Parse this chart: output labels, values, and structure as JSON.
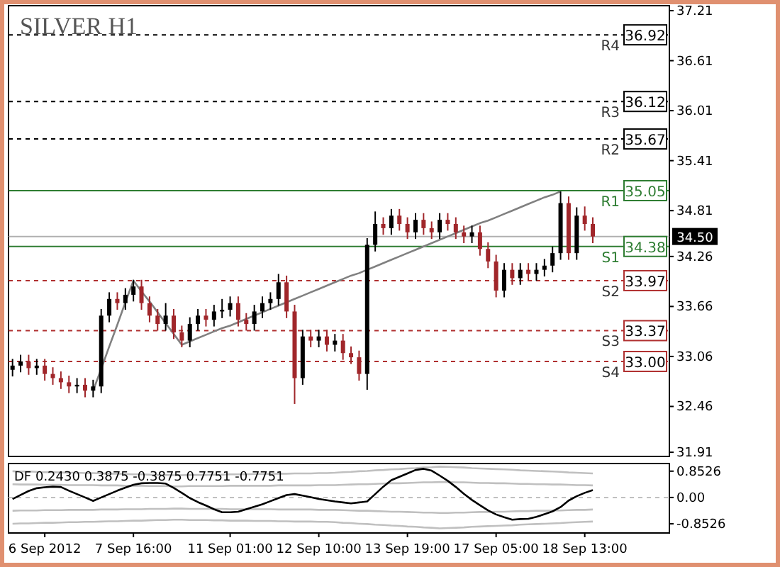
{
  "chart_data": [
    {
      "type": "candlestick",
      "title": "SILVER H1",
      "categories": [
        null,
        null,
        null,
        null,
        null,
        null,
        null,
        null,
        null,
        null,
        null,
        null,
        null,
        null,
        null,
        null,
        null,
        null,
        null,
        null,
        null,
        null,
        null,
        null,
        null,
        null,
        null,
        null,
        null,
        null,
        null,
        null,
        null,
        null,
        null,
        null,
        null,
        null,
        null,
        null,
        null,
        null,
        null,
        null,
        null,
        null,
        null,
        null,
        null,
        null,
        null,
        null,
        null,
        null,
        null,
        null,
        null,
        null,
        null,
        null,
        null,
        null,
        null,
        null,
        null,
        null,
        null,
        null,
        null,
        null,
        null,
        null,
        null,
        null,
        null,
        null,
        null,
        null,
        null,
        null,
        null,
        null
      ],
      "ohlc": [
        [
          32.9,
          33.03,
          32.82,
          32.95
        ],
        [
          32.95,
          33.08,
          32.87,
          33.0
        ],
        [
          33.0,
          33.08,
          32.84,
          32.92
        ],
        [
          32.92,
          33.03,
          32.84,
          32.95
        ],
        [
          32.95,
          33.03,
          32.77,
          32.85
        ],
        [
          32.85,
          32.93,
          32.72,
          32.8
        ],
        [
          32.8,
          32.88,
          32.67,
          32.75
        ],
        [
          32.75,
          32.83,
          32.62,
          32.7
        ],
        [
          32.7,
          32.8,
          32.62,
          32.72
        ],
        [
          32.72,
          32.8,
          32.57,
          32.65
        ],
        [
          32.65,
          32.78,
          32.57,
          32.7
        ],
        [
          32.7,
          33.63,
          32.62,
          33.55
        ],
        [
          33.55,
          33.83,
          33.47,
          33.75
        ],
        [
          33.75,
          33.83,
          33.62,
          33.7
        ],
        [
          33.7,
          33.88,
          33.62,
          33.8
        ],
        [
          33.8,
          33.98,
          33.72,
          33.9
        ],
        [
          33.9,
          33.98,
          33.62,
          33.7
        ],
        [
          33.7,
          33.78,
          33.47,
          33.55
        ],
        [
          33.55,
          33.63,
          33.37,
          33.45
        ],
        [
          33.45,
          33.7,
          33.37,
          33.55
        ],
        [
          33.55,
          33.63,
          33.27,
          33.35
        ],
        [
          33.35,
          33.43,
          33.17,
          33.25
        ],
        [
          33.25,
          33.53,
          33.17,
          33.45
        ],
        [
          33.45,
          33.63,
          33.37,
          33.55
        ],
        [
          33.55,
          33.63,
          33.42,
          33.5
        ],
        [
          33.5,
          33.68,
          33.42,
          33.6
        ],
        [
          33.6,
          33.75,
          33.52,
          33.62
        ],
        [
          33.62,
          33.78,
          33.54,
          33.7
        ],
        [
          33.7,
          33.78,
          33.42,
          33.5
        ],
        [
          33.5,
          33.58,
          33.37,
          33.45
        ],
        [
          33.45,
          33.68,
          33.37,
          33.6
        ],
        [
          33.6,
          33.78,
          33.52,
          33.7
        ],
        [
          33.7,
          33.83,
          33.62,
          33.75
        ],
        [
          33.75,
          34.05,
          33.67,
          33.95
        ],
        [
          33.95,
          34.03,
          33.52,
          33.6
        ],
        [
          33.6,
          33.68,
          32.49,
          32.8
        ],
        [
          32.8,
          33.38,
          32.72,
          33.3
        ],
        [
          33.3,
          33.38,
          33.17,
          33.25
        ],
        [
          33.25,
          33.38,
          33.17,
          33.3
        ],
        [
          33.3,
          33.38,
          33.12,
          33.2
        ],
        [
          33.2,
          33.33,
          33.12,
          33.25
        ],
        [
          33.25,
          33.33,
          33.02,
          33.1
        ],
        [
          33.1,
          33.18,
          32.97,
          33.05
        ],
        [
          33.05,
          33.13,
          32.77,
          32.85
        ],
        [
          32.85,
          34.48,
          32.66,
          34.4
        ],
        [
          34.4,
          34.8,
          34.32,
          34.65
        ],
        [
          34.65,
          34.73,
          34.52,
          34.6
        ],
        [
          34.6,
          34.83,
          34.52,
          34.75
        ],
        [
          34.75,
          34.83,
          34.57,
          34.65
        ],
        [
          34.65,
          34.73,
          34.47,
          34.55
        ],
        [
          34.55,
          34.78,
          34.47,
          34.7
        ],
        [
          34.7,
          34.78,
          34.52,
          34.6
        ],
        [
          34.6,
          34.68,
          34.47,
          34.55
        ],
        [
          34.55,
          34.78,
          34.47,
          34.7
        ],
        [
          34.7,
          34.78,
          34.57,
          34.65
        ],
        [
          34.65,
          34.73,
          34.47,
          34.55
        ],
        [
          34.55,
          34.63,
          34.42,
          34.5
        ],
        [
          34.5,
          34.63,
          34.42,
          34.55
        ],
        [
          34.55,
          34.63,
          34.27,
          34.35
        ],
        [
          34.35,
          34.43,
          34.12,
          34.2
        ],
        [
          34.2,
          34.28,
          33.77,
          33.85
        ],
        [
          33.85,
          34.18,
          33.77,
          34.1
        ],
        [
          34.1,
          34.18,
          33.92,
          34.0
        ],
        [
          34.0,
          34.18,
          33.92,
          34.1
        ],
        [
          34.1,
          34.18,
          33.97,
          34.05
        ],
        [
          34.05,
          34.18,
          33.97,
          34.1
        ],
        [
          34.1,
          34.23,
          34.02,
          34.15
        ],
        [
          34.15,
          34.38,
          34.07,
          34.3
        ],
        [
          34.3,
          35.04,
          34.22,
          34.9
        ],
        [
          34.9,
          34.98,
          34.22,
          34.3
        ],
        [
          34.3,
          34.85,
          34.22,
          34.75
        ],
        [
          34.75,
          34.86,
          34.57,
          34.65
        ],
        [
          34.65,
          34.73,
          34.42,
          34.5
        ],
        null,
        null,
        null,
        null,
        null,
        null,
        null,
        null,
        null
      ],
      "series": [
        {
          "type": "line",
          "color": "#808080",
          "values": [
            null,
            null,
            null,
            null,
            null,
            null,
            null,
            null,
            null,
            null,
            32.65,
            32.91,
            33.18,
            33.44,
            33.71,
            33.97,
            33.84,
            33.72,
            33.59,
            33.46,
            33.33,
            33.2,
            33.24,
            33.28,
            33.32,
            33.36,
            33.4,
            33.43,
            33.47,
            33.51,
            33.55,
            33.59,
            33.63,
            33.67,
            33.71,
            33.75,
            33.79,
            33.83,
            33.87,
            33.91,
            33.95,
            33.99,
            34.03,
            34.06,
            34.1,
            34.14,
            34.18,
            34.22,
            34.26,
            34.3,
            34.34,
            34.38,
            34.42,
            34.46,
            34.5,
            34.54,
            34.58,
            34.62,
            34.66,
            34.69,
            34.73,
            34.77,
            34.81,
            34.85,
            34.89,
            34.93,
            34.97,
            35.0,
            35.04,
            null,
            null,
            null,
            null,
            null,
            null,
            null,
            null,
            null,
            null,
            null,
            null,
            null
          ]
        }
      ],
      "ylim": [
        31.86,
        37.27
      ],
      "yticks": [
        37.21,
        36.61,
        36.01,
        35.41,
        34.81,
        34.26,
        33.66,
        33.06,
        32.46,
        31.91
      ],
      "tick_labels": "y",
      "annotations": [
        {
          "text": "R4",
          "y": 36.92
        },
        {
          "text": "R3",
          "y": 36.12
        },
        {
          "text": "R2",
          "y": 35.67
        },
        {
          "text": "R1",
          "y": 35.05
        },
        {
          "text": "S1",
          "y": 34.38
        },
        {
          "text": "S2",
          "y": 33.97
        },
        {
          "text": "S3",
          "y": 33.37
        },
        {
          "text": "S4",
          "y": 33.0
        }
      ],
      "ref_lines": [
        {
          "axis": "y",
          "value": 36.92,
          "label": "36.92",
          "color": "#000000",
          "line_style": "dashed"
        },
        {
          "axis": "y",
          "value": 36.12,
          "label": "36.12",
          "color": "#000000",
          "line_style": "dashed"
        },
        {
          "axis": "y",
          "value": 35.67,
          "label": "35.67",
          "color": "#000000",
          "line_style": "dashed"
        },
        {
          "axis": "y",
          "value": 35.05,
          "label": "35.05",
          "color": "#2e7d32",
          "line_style": "solid"
        },
        {
          "axis": "y",
          "value": 34.38,
          "label": "34.38",
          "color": "#2e7d32",
          "line_style": "solid"
        },
        {
          "axis": "y",
          "value": 33.97,
          "label": "33.97",
          "color": "#b03030",
          "line_style": "dashed"
        },
        {
          "axis": "y",
          "value": 33.37,
          "label": "33.37",
          "color": "#b03030",
          "line_style": "dashed"
        },
        {
          "axis": "y",
          "value": 33.0,
          "label": "33.00",
          "color": "#b03030",
          "line_style": "dashed"
        },
        {
          "axis": "y",
          "value": 34.5,
          "label": "34.50",
          "color": "#b0b0b0",
          "line_style": "solid"
        }
      ]
    },
    {
      "type": "line",
      "title": "DF 0.2430 0.3875 -0.3875 0.7751 -0.7751",
      "categories": [
        null,
        null,
        null,
        null,
        "6 Sep 2012",
        null,
        null,
        null,
        null,
        null,
        null,
        null,
        null,
        null,
        null,
        "7 Sep 16:00",
        null,
        null,
        null,
        null,
        null,
        null,
        null,
        null,
        null,
        null,
        null,
        "11 Sep 01:00",
        null,
        null,
        null,
        null,
        null,
        null,
        null,
        null,
        null,
        null,
        "12 Sep 10:00",
        null,
        null,
        null,
        null,
        null,
        null,
        null,
        null,
        null,
        null,
        "13 Sep 19:00",
        null,
        null,
        null,
        null,
        null,
        null,
        null,
        null,
        null,
        null,
        "17 Sep 05:00",
        null,
        null,
        null,
        null,
        null,
        null,
        null,
        null,
        null,
        null,
        "18 Sep 13:00",
        null,
        null,
        null,
        null,
        null,
        null,
        null,
        null,
        null,
        null
      ],
      "series": [
        {
          "color": "#c0c0c0",
          "values": [
            0.85,
            0.84,
            0.84,
            0.83,
            0.82,
            0.82,
            0.81,
            0.8,
            0.8,
            0.79,
            0.79,
            0.78,
            0.77,
            0.77,
            0.76,
            0.75,
            0.75,
            0.74,
            0.73,
            0.73,
            0.72,
            0.72,
            0.73,
            0.73,
            0.73,
            0.74,
            0.74,
            0.75,
            0.75,
            0.75,
            0.76,
            0.76,
            0.76,
            0.77,
            0.77,
            0.78,
            0.78,
            0.78,
            0.79,
            0.79,
            0.8,
            0.82,
            0.83,
            0.85,
            0.86,
            0.88,
            0.89,
            0.91,
            0.92,
            0.94,
            0.95,
            0.97,
            0.98,
            1.0,
            0.99,
            0.98,
            0.97,
            0.95,
            0.94,
            0.93,
            0.92,
            0.91,
            0.9,
            0.88,
            0.87,
            0.86,
            0.85,
            0.84,
            0.83,
            0.81,
            0.8,
            0.79,
            0.78,
            null,
            null,
            null,
            null,
            null,
            null,
            null,
            null,
            null
          ]
        },
        {
          "color": "#c0c0c0",
          "values": [
            0.43,
            0.42,
            0.42,
            0.42,
            0.41,
            0.41,
            0.41,
            0.4,
            0.4,
            0.4,
            0.4,
            0.39,
            0.39,
            0.39,
            0.38,
            0.38,
            0.38,
            0.37,
            0.37,
            0.37,
            0.36,
            0.36,
            0.37,
            0.37,
            0.37,
            0.37,
            0.37,
            0.38,
            0.38,
            0.38,
            0.38,
            0.38,
            0.38,
            0.39,
            0.39,
            0.39,
            0.39,
            0.39,
            0.4,
            0.4,
            0.4,
            0.41,
            0.42,
            0.43,
            0.43,
            0.44,
            0.45,
            0.46,
            0.46,
            0.47,
            0.48,
            0.49,
            0.49,
            0.5,
            0.5,
            0.49,
            0.49,
            0.48,
            0.47,
            0.47,
            0.46,
            0.46,
            0.45,
            0.44,
            0.44,
            0.43,
            0.43,
            0.42,
            0.42,
            0.41,
            0.4,
            0.4,
            0.39,
            null,
            null,
            null,
            null,
            null,
            null,
            null,
            null,
            null
          ]
        },
        {
          "color": "#c0c0c0",
          "values": [
            -0.43,
            -0.42,
            -0.42,
            -0.42,
            -0.41,
            -0.41,
            -0.41,
            -0.4,
            -0.4,
            -0.4,
            -0.4,
            -0.39,
            -0.39,
            -0.39,
            -0.38,
            -0.38,
            -0.38,
            -0.37,
            -0.37,
            -0.37,
            -0.36,
            -0.36,
            -0.37,
            -0.37,
            -0.37,
            -0.37,
            -0.37,
            -0.38,
            -0.38,
            -0.38,
            -0.38,
            -0.38,
            -0.38,
            -0.39,
            -0.39,
            -0.39,
            -0.39,
            -0.39,
            -0.4,
            -0.4,
            -0.4,
            -0.41,
            -0.42,
            -0.43,
            -0.43,
            -0.44,
            -0.45,
            -0.46,
            -0.46,
            -0.47,
            -0.48,
            -0.49,
            -0.49,
            -0.5,
            -0.5,
            -0.49,
            -0.49,
            -0.48,
            -0.47,
            -0.47,
            -0.46,
            -0.46,
            -0.45,
            -0.44,
            -0.44,
            -0.43,
            -0.43,
            -0.42,
            -0.42,
            -0.41,
            -0.4,
            -0.4,
            -0.39,
            null,
            null,
            null,
            null,
            null,
            null,
            null,
            null,
            null
          ]
        },
        {
          "color": "#c0c0c0",
          "values": [
            -0.85,
            -0.84,
            -0.84,
            -0.83,
            -0.82,
            -0.82,
            -0.81,
            -0.8,
            -0.8,
            -0.79,
            -0.79,
            -0.78,
            -0.77,
            -0.77,
            -0.76,
            -0.75,
            -0.75,
            -0.74,
            -0.73,
            -0.73,
            -0.72,
            -0.72,
            -0.73,
            -0.73,
            -0.73,
            -0.74,
            -0.74,
            -0.75,
            -0.75,
            -0.75,
            -0.76,
            -0.76,
            -0.76,
            -0.77,
            -0.77,
            -0.78,
            -0.78,
            -0.78,
            -0.79,
            -0.79,
            -0.8,
            -0.82,
            -0.83,
            -0.85,
            -0.86,
            -0.88,
            -0.89,
            -0.91,
            -0.92,
            -0.94,
            -0.95,
            -0.97,
            -0.98,
            -1.0,
            -0.99,
            -0.98,
            -0.97,
            -0.95,
            -0.94,
            -0.93,
            -0.92,
            -0.91,
            -0.9,
            -0.88,
            -0.87,
            -0.86,
            -0.85,
            -0.84,
            -0.83,
            -0.81,
            -0.8,
            -0.79,
            -0.78,
            null,
            null,
            null,
            null,
            null,
            null,
            null,
            null,
            null
          ]
        },
        {
          "color": "#000000",
          "values": [
            -0.05,
            0.08,
            0.21,
            0.3,
            0.33,
            0.35,
            0.34,
            0.22,
            0.11,
            0.0,
            -0.11,
            0.0,
            0.11,
            0.22,
            0.32,
            0.41,
            0.46,
            0.47,
            0.47,
            0.45,
            0.31,
            0.15,
            -0.02,
            -0.15,
            -0.26,
            -0.38,
            -0.48,
            -0.48,
            -0.46,
            -0.38,
            -0.3,
            -0.22,
            -0.12,
            -0.02,
            0.08,
            0.11,
            0.06,
            0.01,
            -0.05,
            -0.09,
            -0.13,
            -0.16,
            -0.19,
            -0.16,
            -0.13,
            0.11,
            0.35,
            0.56,
            0.67,
            0.78,
            0.89,
            0.93,
            0.87,
            0.71,
            0.54,
            0.34,
            0.12,
            -0.08,
            -0.25,
            -0.42,
            -0.55,
            -0.64,
            -0.72,
            -0.7,
            -0.69,
            -0.63,
            -0.54,
            -0.45,
            -0.31,
            -0.1,
            0.04,
            0.15,
            0.24,
            null,
            null,
            null,
            null,
            null,
            null,
            null,
            null,
            null
          ]
        }
      ],
      "ylim": [
        -1.15,
        1.1
      ],
      "yticks": [
        {
          "value": 0.8526,
          "label": "0.8526"
        },
        {
          "value": 0,
          "label": "0.00"
        },
        {
          "value": -0.8526,
          "label": "-0.8526"
        }
      ],
      "ref_lines": [
        {
          "axis": "y",
          "value": 0,
          "color": "#c0c0c0",
          "line_style": "dashed"
        }
      ]
    }
  ]
}
